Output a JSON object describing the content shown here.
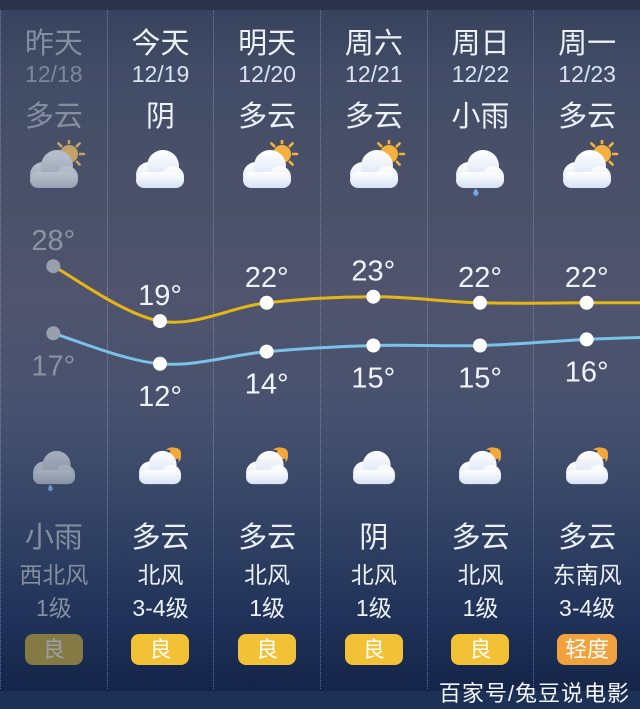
{
  "columns": [
    {
      "day": "昨天",
      "date": "12/18",
      "day_cond": "多云",
      "day_icon": "cloud-sun",
      "night_icon": "cloud-rain",
      "night_cond": "小雨",
      "wind_dir": "西北风",
      "wind_level": "1级",
      "aqi": "良",
      "aqi_level": "good",
      "dimmed": true
    },
    {
      "day": "今天",
      "date": "12/19",
      "day_cond": "阴",
      "day_icon": "cloud",
      "night_icon": "cloud-moon",
      "night_cond": "多云",
      "wind_dir": "北风",
      "wind_level": "3-4级",
      "aqi": "良",
      "aqi_level": "good",
      "dimmed": false
    },
    {
      "day": "明天",
      "date": "12/20",
      "day_cond": "多云",
      "day_icon": "cloud-sun",
      "night_icon": "cloud-moon",
      "night_cond": "多云",
      "wind_dir": "北风",
      "wind_level": "1级",
      "aqi": "良",
      "aqi_level": "good",
      "dimmed": false
    },
    {
      "day": "周六",
      "date": "12/21",
      "day_cond": "多云",
      "day_icon": "cloud-sun",
      "night_icon": "cloud",
      "night_cond": "阴",
      "wind_dir": "北风",
      "wind_level": "1级",
      "aqi": "良",
      "aqi_level": "good",
      "dimmed": false
    },
    {
      "day": "周日",
      "date": "12/22",
      "day_cond": "小雨",
      "day_icon": "cloud-rain",
      "night_icon": "cloud-moon",
      "night_cond": "多云",
      "wind_dir": "北风",
      "wind_level": "1级",
      "aqi": "良",
      "aqi_level": "good",
      "dimmed": false
    },
    {
      "day": "周一",
      "date": "12/23",
      "day_cond": "多云",
      "day_icon": "cloud-sun",
      "night_icon": "cloud-moon",
      "night_cond": "多云",
      "wind_dir": "东南风",
      "wind_level": "3-4级",
      "aqi": "轻度",
      "aqi_level": "moderate",
      "dimmed": false
    }
  ],
  "chart_data": {
    "type": "line",
    "categories": [
      "昨天",
      "今天",
      "明天",
      "周六",
      "周日",
      "周一"
    ],
    "series": [
      {
        "name": "high",
        "values": [
          28,
          19,
          22,
          23,
          22,
          22
        ],
        "color": "#e5b714"
      },
      {
        "name": "low",
        "values": [
          17,
          12,
          14,
          15,
          15,
          16
        ],
        "color": "#7ac2e8"
      }
    ],
    "unit": "°",
    "legend": "none",
    "grid": "dotted-vertical-dividers"
  },
  "watermark": "百家号/兔豆说电影",
  "colors": {
    "text": "#edf1f8",
    "dim_text": "#858e9f",
    "high_line": "#e5b714",
    "low_line": "#7ac2e8",
    "badge_good": "#f3c136",
    "badge_moderate": "#f2a23c"
  }
}
